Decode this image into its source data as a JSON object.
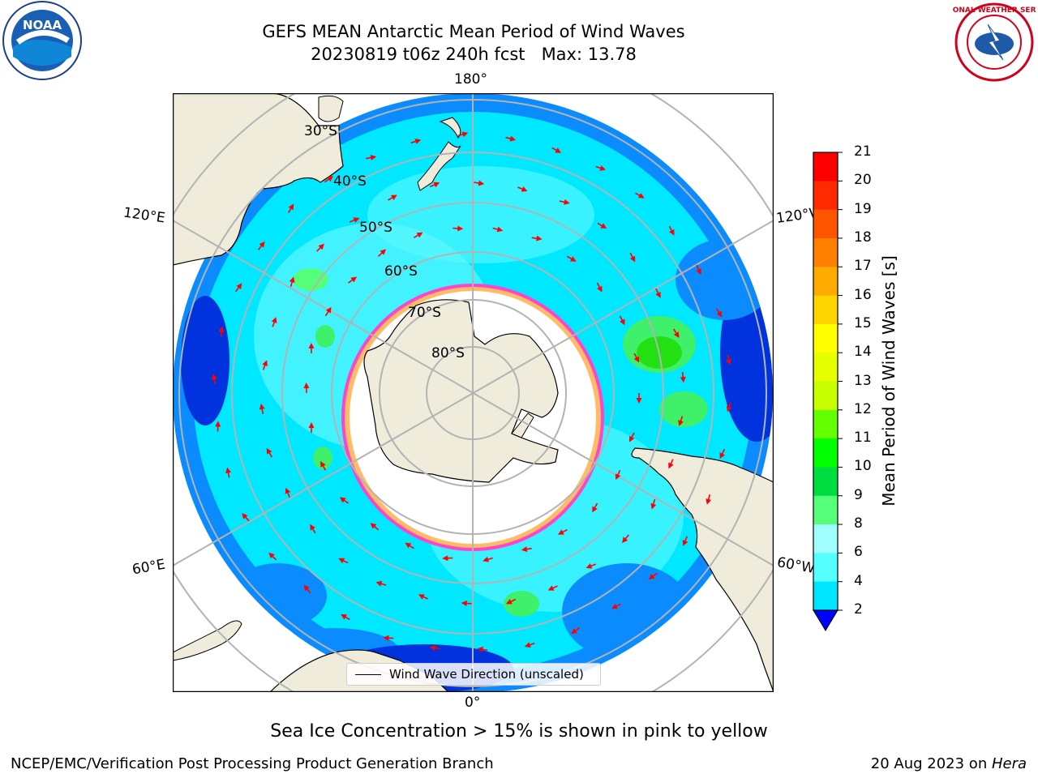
{
  "title": "GEFS MEAN Antarctic Mean Period of Wind Waves",
  "subtitle": "20230819 t06z 240h fcst   Max: 13.78",
  "lon_labels": {
    "top": "180°",
    "bottom": "0°",
    "left_upper": "120°E",
    "right_upper": "120°W",
    "left_lower": "60°E",
    "right_lower": "60°W"
  },
  "lat_labels": [
    "30°S",
    "40°S",
    "50°S",
    "60°S",
    "70°S",
    "80°S"
  ],
  "legend_label": "Wind Wave Direction (unscaled)",
  "colorbar": {
    "label": "Mean Period of Wind Waves [s]",
    "ticks": [
      "21",
      "20",
      "19",
      "18",
      "17",
      "16",
      "15",
      "14",
      "13",
      "12",
      "11",
      "10",
      "9",
      "8",
      "6",
      "4",
      "2"
    ],
    "colors": [
      "#ff0000",
      "#ff2a00",
      "#ff5500",
      "#ff8000",
      "#ffaa00",
      "#ffd500",
      "#ffff00",
      "#e6ff00",
      "#c8ff00",
      "#64ff00",
      "#00ff00",
      "#00dd40",
      "#55ff7a",
      "#a0ffff",
      "#55ffff",
      "#00e5ff",
      "#0080ff",
      "#0000ff"
    ]
  },
  "colors": {
    "land": "#efecdc",
    "ice": "#ffffff",
    "ocean_low": "#0a8cff",
    "ocean_mid": "#00e8ff",
    "ocean_pale": "#5ef8ff",
    "wave_green": "#3ef06a",
    "ice_edge": "#ff44cc",
    "arrow": "#ff0000",
    "grid": "#b3b3b3"
  },
  "footer_note": "Sea Ice Concentration > 15% is shown in pink to yellow",
  "footer_left": "NCEP/EMC/Verification Post Processing Product Generation Branch",
  "footer_date": "20 Aug 2023 on ",
  "footer_host": "Hera",
  "logos": {
    "noaa": "NOAA",
    "nws": "NATIONAL WEATHER SERVICE"
  }
}
